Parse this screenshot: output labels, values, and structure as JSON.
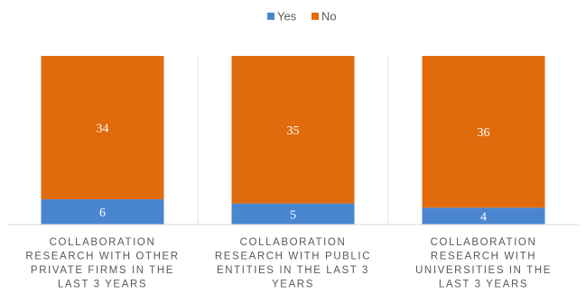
{
  "chart_data": {
    "type": "bar",
    "stacked": true,
    "categories": [
      "COLLABORATION RESEARCH WITH OTHER PRIVATE FIRMS IN THE LAST 3 YEARS",
      "COLLABORATION RESEARCH WITH  PUBLIC ENTITIES IN THE LAST 3 YEARS",
      "COLLABORATION RESEARCH WITH UNIVERSITIES IN THE LAST 3 YEARS"
    ],
    "category_lines": [
      [
        "COLLABORATION",
        "RESEARCH WITH OTHER",
        "PRIVATE FIRMS IN THE",
        "LAST 3 YEARS"
      ],
      [
        "COLLABORATION",
        "RESEARCH WITH  PUBLIC",
        "ENTITIES IN THE LAST 3",
        "YEARS"
      ],
      [
        "COLLABORATION",
        "RESEARCH WITH",
        "UNIVERSITIES IN THE",
        "LAST 3 YEARS"
      ]
    ],
    "series": [
      {
        "name": "Yes",
        "color": "#4a86d0",
        "values": [
          6,
          5,
          4
        ]
      },
      {
        "name": "No",
        "color": "#e06b0c",
        "values": [
          34,
          35,
          36
        ]
      }
    ],
    "ylim": [
      0,
      40
    ],
    "legend_position": "top-center",
    "grid": false,
    "data_labels": true
  }
}
